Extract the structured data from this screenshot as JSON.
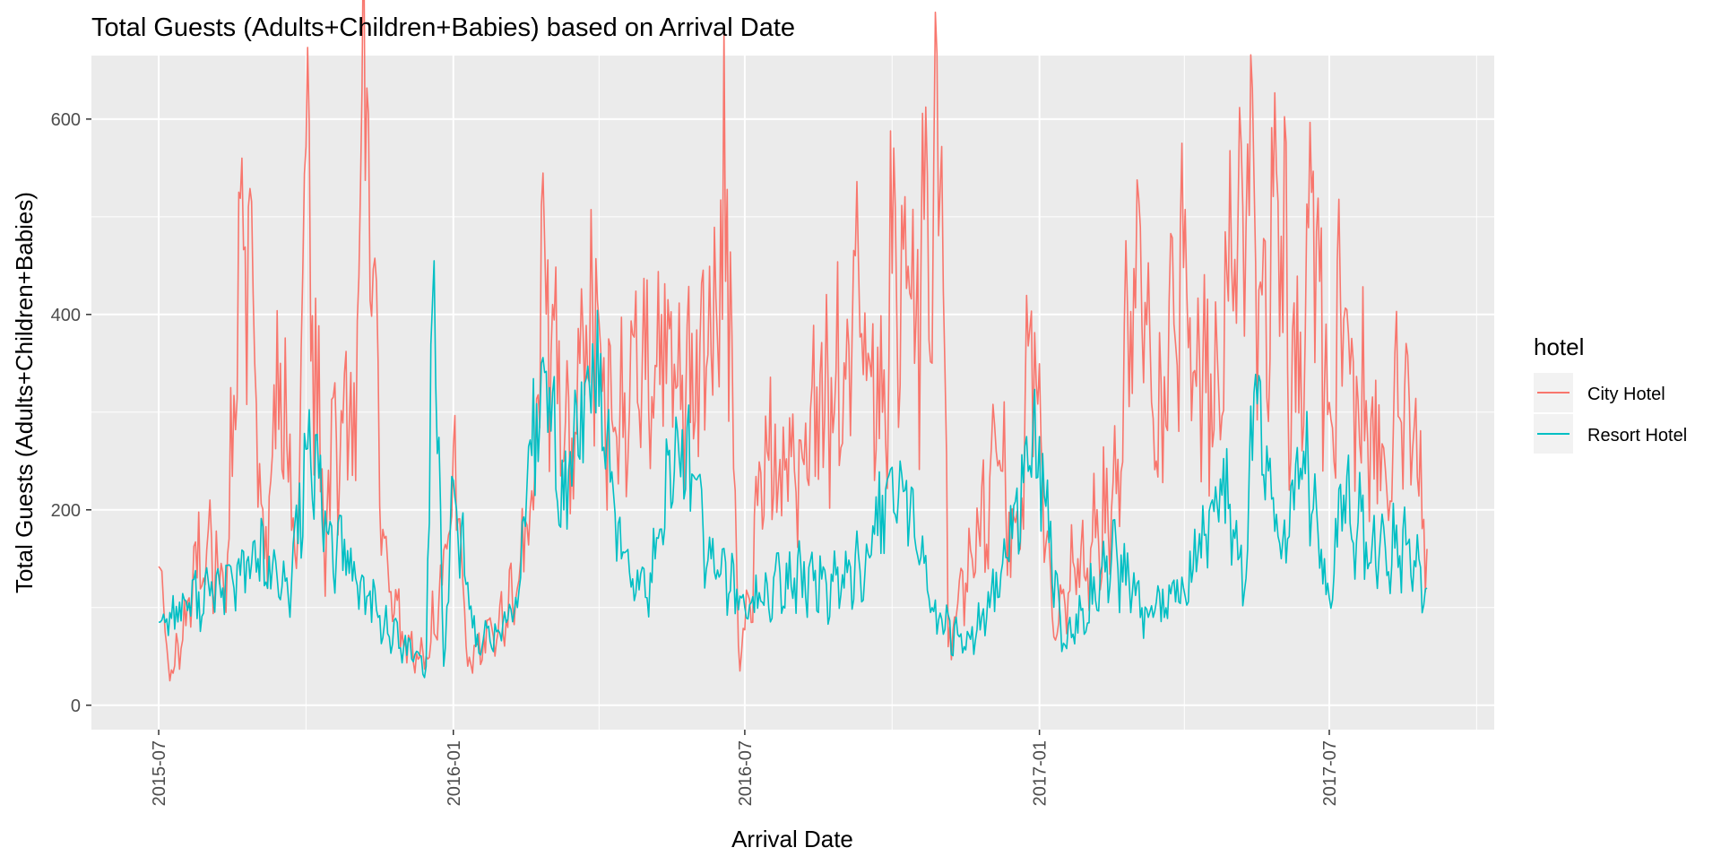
{
  "chart_data": {
    "type": "line",
    "title": "Total Guests (Adults+Children+Babies) based on Arrival Date",
    "xlabel": "Arrival Date",
    "ylabel": "Total Guests (Adults+Children+Babies)",
    "x_range": [
      "2015-07-01",
      "2017-08-31"
    ],
    "xlim": [
      "2015-05-20",
      "2017-10-12"
    ],
    "ylim": [
      -25,
      665
    ],
    "x_ticks": [
      "2015-07-01",
      "2016-01-01",
      "2016-07-01",
      "2017-01-01",
      "2017-07-01"
    ],
    "x_tick_labels": [
      "2015-07",
      "2016-01",
      "2016-07",
      "2017-01",
      "2017-07"
    ],
    "y_ticks": [
      0,
      200,
      400,
      600
    ],
    "y_tick_labels": [
      "0",
      "200",
      "400",
      "600"
    ],
    "grid": true,
    "legend": {
      "title": "hotel",
      "position": "right"
    },
    "series": [
      {
        "name": "City Hotel",
        "color": "#F8766D",
        "keypoints": [
          [
            "2015-07-01",
            142
          ],
          [
            "2015-07-08",
            25
          ],
          [
            "2015-07-20",
            110
          ],
          [
            "2015-08-01",
            180
          ],
          [
            "2015-08-12",
            95
          ],
          [
            "2015-08-22",
            560
          ],
          [
            "2015-09-05",
            150
          ],
          [
            "2015-09-15",
            350
          ],
          [
            "2015-09-25",
            140
          ],
          [
            "2015-10-01",
            572
          ],
          [
            "2015-10-12",
            180
          ],
          [
            "2015-10-25",
            340
          ],
          [
            "2015-11-01",
            230
          ],
          [
            "2015-11-05",
            632
          ],
          [
            "2015-11-18",
            180
          ],
          [
            "2015-12-01",
            60
          ],
          [
            "2015-12-15",
            50
          ],
          [
            "2015-12-28",
            160
          ],
          [
            "2016-01-01",
            265
          ],
          [
            "2016-01-10",
            40
          ],
          [
            "2016-01-25",
            80
          ],
          [
            "2016-02-10",
            120
          ],
          [
            "2016-02-20",
            200
          ],
          [
            "2016-02-27",
            475
          ],
          [
            "2016-03-10",
            250
          ],
          [
            "2016-03-20",
            350
          ],
          [
            "2016-03-28",
            405
          ],
          [
            "2016-04-10",
            280
          ],
          [
            "2016-04-25",
            310
          ],
          [
            "2016-05-10",
            400
          ],
          [
            "2016-05-25",
            300
          ],
          [
            "2016-06-10",
            360
          ],
          [
            "2016-06-20",
            528
          ],
          [
            "2016-06-28",
            35
          ],
          [
            "2016-07-15",
            260
          ],
          [
            "2016-08-01",
            240
          ],
          [
            "2016-08-20",
            300
          ],
          [
            "2016-09-10",
            455
          ],
          [
            "2016-09-25",
            300
          ],
          [
            "2016-10-03",
            510
          ],
          [
            "2016-10-15",
            350
          ],
          [
            "2016-10-23",
            543
          ],
          [
            "2016-11-01",
            572
          ],
          [
            "2016-11-05",
            60
          ],
          [
            "2016-11-20",
            150
          ],
          [
            "2016-12-05",
            260
          ],
          [
            "2016-12-20",
            160
          ],
          [
            "2016-12-26",
            385
          ],
          [
            "2017-01-10",
            70
          ],
          [
            "2017-01-25",
            150
          ],
          [
            "2017-02-15",
            200
          ],
          [
            "2017-03-01",
            447
          ],
          [
            "2017-03-15",
            250
          ],
          [
            "2017-04-01",
            448
          ],
          [
            "2017-04-15",
            320
          ],
          [
            "2017-05-01",
            450
          ],
          [
            "2017-05-10",
            489
          ],
          [
            "2017-05-20",
            420
          ],
          [
            "2017-06-01",
            480
          ],
          [
            "2017-06-10",
            300
          ],
          [
            "2017-06-20",
            525
          ],
          [
            "2017-07-01",
            310
          ],
          [
            "2017-07-10",
            395
          ],
          [
            "2017-07-25",
            270
          ],
          [
            "2017-08-10",
            280
          ],
          [
            "2017-08-20",
            310
          ],
          [
            "2017-08-31",
            160
          ]
        ]
      },
      {
        "name": "Resort Hotel",
        "color": "#00BFC4",
        "keypoints": [
          [
            "2015-07-01",
            85
          ],
          [
            "2015-07-20",
            105
          ],
          [
            "2015-08-10",
            120
          ],
          [
            "2015-09-01",
            150
          ],
          [
            "2015-09-20",
            110
          ],
          [
            "2015-10-01",
            262
          ],
          [
            "2015-10-15",
            175
          ],
          [
            "2015-11-01",
            130
          ],
          [
            "2015-11-15",
            90
          ],
          [
            "2015-12-01",
            60
          ],
          [
            "2015-12-15",
            40
          ],
          [
            "2015-12-20",
            455
          ],
          [
            "2015-12-26",
            40
          ],
          [
            "2016-01-01",
            230
          ],
          [
            "2016-01-15",
            60
          ],
          [
            "2016-02-10",
            100
          ],
          [
            "2016-02-25",
            350
          ],
          [
            "2016-03-10",
            200
          ],
          [
            "2016-03-28",
            370
          ],
          [
            "2016-04-15",
            150
          ],
          [
            "2016-05-01",
            110
          ],
          [
            "2016-05-20",
            280
          ],
          [
            "2016-06-10",
            150
          ],
          [
            "2016-07-01",
            100
          ],
          [
            "2016-08-01",
            130
          ],
          [
            "2016-09-01",
            120
          ],
          [
            "2016-09-20",
            175
          ],
          [
            "2016-10-10",
            230
          ],
          [
            "2016-10-25",
            95
          ],
          [
            "2016-11-15",
            60
          ],
          [
            "2016-12-01",
            100
          ],
          [
            "2017-01-01",
            275
          ],
          [
            "2017-01-15",
            55
          ],
          [
            "2017-02-15",
            150
          ],
          [
            "2017-03-10",
            90
          ],
          [
            "2017-04-01",
            120
          ],
          [
            "2017-04-25",
            215
          ],
          [
            "2017-05-10",
            130
          ],
          [
            "2017-05-15",
            320
          ],
          [
            "2017-06-01",
            150
          ],
          [
            "2017-06-15",
            260
          ],
          [
            "2017-07-01",
            110
          ],
          [
            "2017-07-10",
            215
          ],
          [
            "2017-08-01",
            150
          ],
          [
            "2017-08-20",
            170
          ],
          [
            "2017-08-31",
            120
          ]
        ]
      }
    ]
  }
}
